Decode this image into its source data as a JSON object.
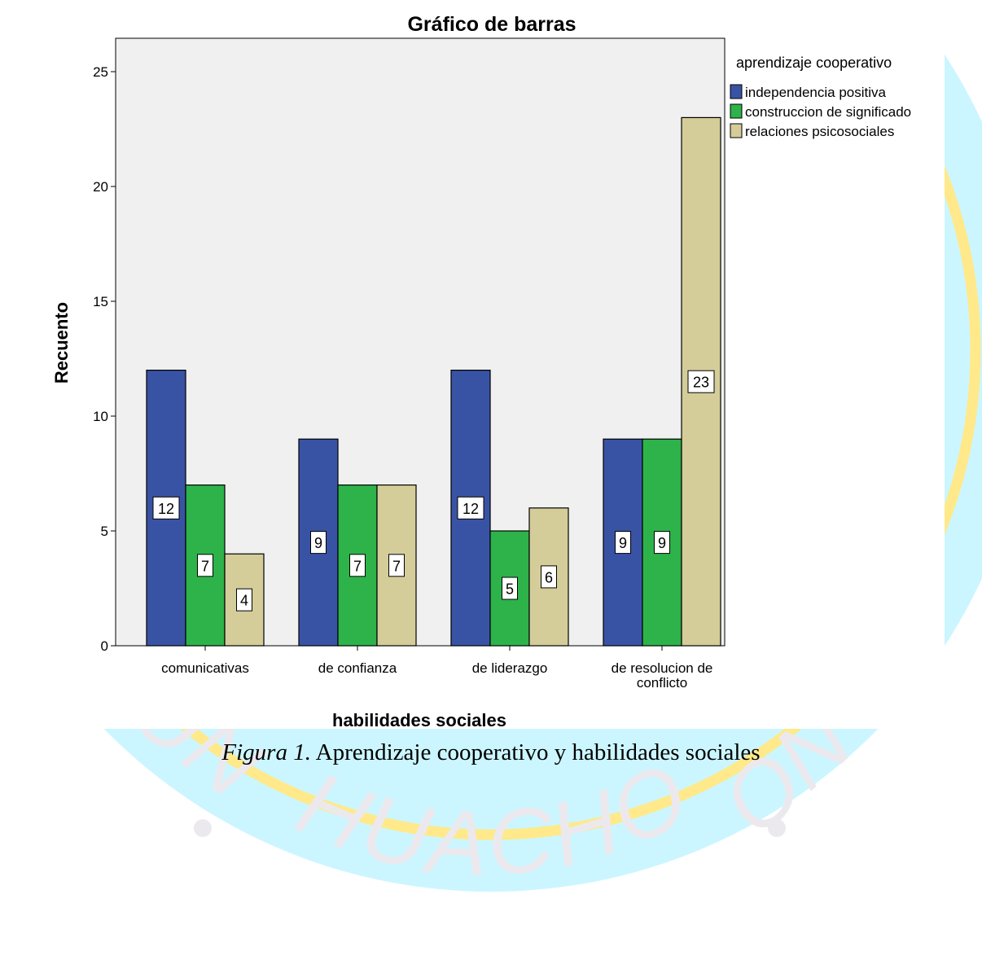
{
  "watermark": {
    "text_bottom": "HUACHO",
    "text_left": "UN",
    "text_right": "ON",
    "seal_fill_color": "#ccf6ff",
    "ring_color": "#ffe98a",
    "letter_color": "#ece9ee"
  },
  "caption": {
    "figure_label": "Figura 1.",
    "text": "Aprendizaje cooperativo y habilidades sociales"
  },
  "colors": {
    "plot_background": "#f0f0f0",
    "series": [
      "#3953a4",
      "#2db34a",
      "#d4cd99"
    ]
  },
  "chart_data": {
    "type": "bar",
    "title": "Gráfico de barras",
    "xlabel": "habilidades sociales",
    "ylabel": "Recuento",
    "categories": [
      "comunicativas",
      "de confianza",
      "de liderazgo",
      "de resolucion de conflicto"
    ],
    "category_label_lines": [
      [
        "comunicativas"
      ],
      [
        "de confianza"
      ],
      [
        "de liderazgo"
      ],
      [
        "de resolucion de",
        "conflicto"
      ]
    ],
    "legend_title": "aprendizaje cooperativo",
    "legend_position": "right",
    "series": [
      {
        "name": "independencia positiva",
        "values": [
          12,
          9,
          12,
          9
        ]
      },
      {
        "name": "construccion de significado",
        "values": [
          7,
          7,
          5,
          9
        ]
      },
      {
        "name": "relaciones psicosociales",
        "values": [
          4,
          7,
          6,
          23
        ]
      }
    ],
    "ylim": [
      0,
      26
    ],
    "yticks": [
      0,
      5,
      10,
      15,
      20,
      25
    ],
    "data_labels": true,
    "grid": false
  }
}
